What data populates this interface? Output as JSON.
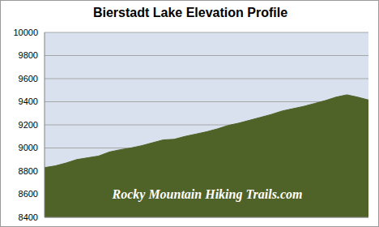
{
  "chart_data": {
    "type": "area",
    "title": "Bierstadt Lake Elevation Profile",
    "annotation": "Rocky Mountain Hiking Trails.com",
    "x": [
      0,
      1,
      2,
      3,
      4,
      5,
      6,
      7,
      8,
      9,
      10,
      11,
      12,
      13,
      14,
      15,
      16,
      17,
      18,
      19,
      20,
      21,
      22,
      23,
      24,
      25,
      26,
      27,
      28,
      29,
      30
    ],
    "values": [
      8830,
      8845,
      8870,
      8900,
      8915,
      8930,
      8965,
      8985,
      9000,
      9020,
      9045,
      9070,
      9075,
      9100,
      9120,
      9140,
      9165,
      9195,
      9215,
      9240,
      9265,
      9290,
      9320,
      9340,
      9360,
      9385,
      9410,
      9440,
      9460,
      9440,
      9415
    ],
    "color": "#4f6228",
    "xlim": [
      0,
      30
    ],
    "ylim": [
      8400,
      10000
    ],
    "yticks": [
      8400,
      8600,
      8800,
      9000,
      9200,
      9400,
      9600,
      9800,
      10000
    ],
    "grid": true,
    "tick_labels": "y"
  }
}
